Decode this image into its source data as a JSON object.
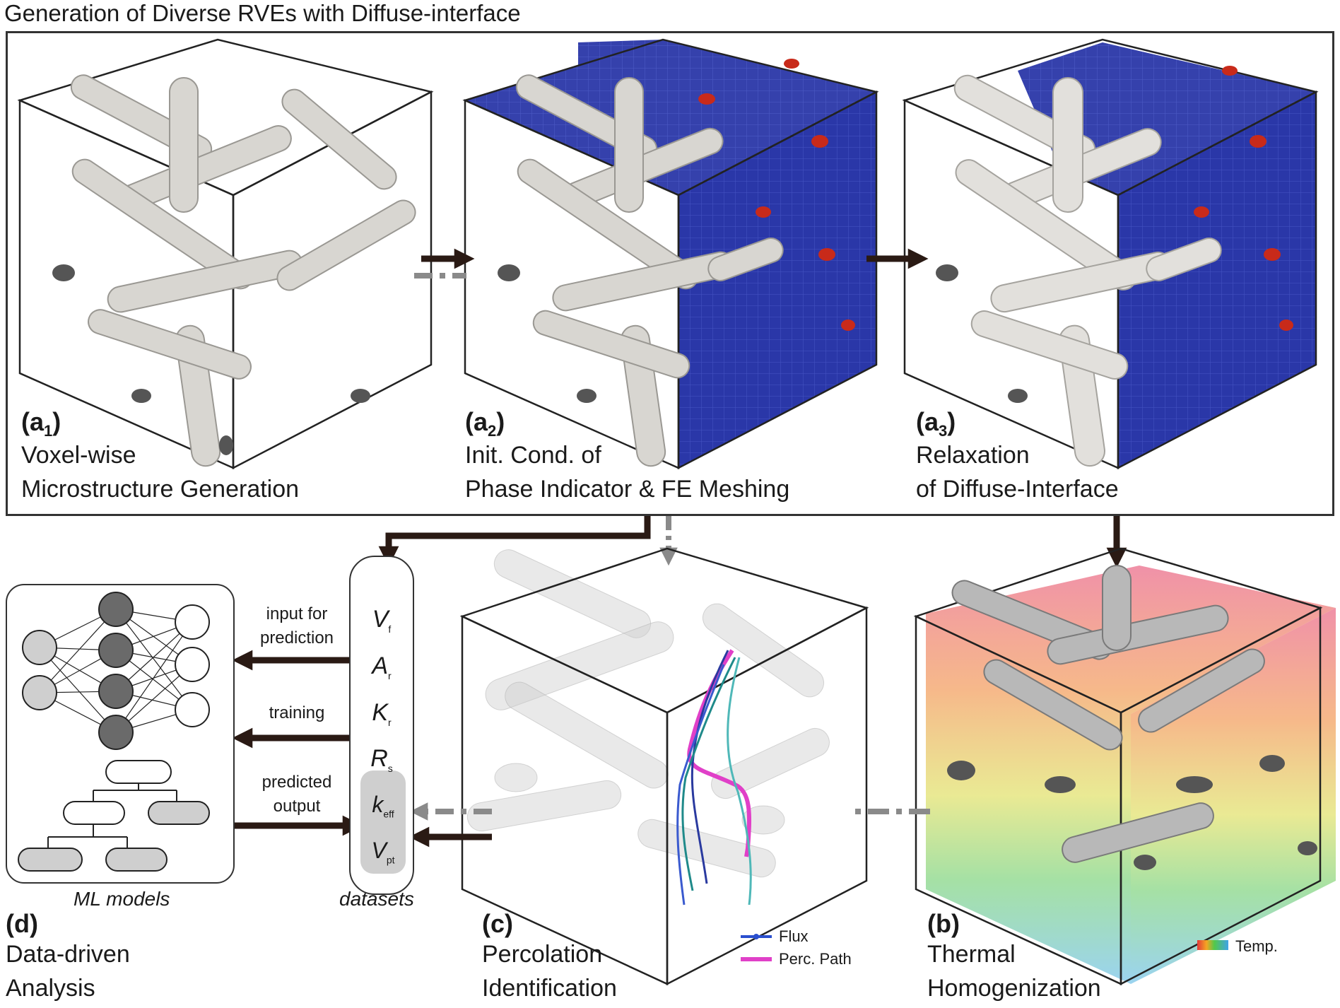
{
  "title": "Generation of Diverse RVEs with Diffuse-interface",
  "panels": {
    "a1": {
      "id": "(a",
      "sub": "1",
      "close": ")",
      "line1": "Voxel-wise",
      "line2": "Microstructure Generation"
    },
    "a2": {
      "id": "(a",
      "sub": "2",
      "close": ")",
      "line1": "Init. Cond. of",
      "line2": "Phase Indicator & FE Meshing"
    },
    "a3": {
      "id": "(a",
      "sub": "3",
      "close": ")",
      "line1": "Relaxation",
      "line2": "of Diffuse-Interface"
    },
    "b": {
      "id": "(b)",
      "line1": "Thermal",
      "line2": "Homogenization"
    },
    "c": {
      "id": "(c)",
      "line1": "Percolation",
      "line2": "Identification"
    },
    "d": {
      "id": "(d)",
      "line1": "Data-driven",
      "line2": "Analysis"
    }
  },
  "arrows": {
    "input_line1": "input for",
    "input_line2": "prediction",
    "training": "training",
    "predicted_line1": "predicted",
    "predicted_line2": "output"
  },
  "ml_label": "ML models",
  "datasets_label": "datasets",
  "variables": [
    {
      "sym": "V",
      "sub": "f"
    },
    {
      "sym": "A",
      "sub": "r"
    },
    {
      "sym": "K",
      "sub": "r"
    },
    {
      "sym": "R",
      "sub": "s"
    }
  ],
  "outputs": [
    {
      "sym": "k",
      "sub": "eff"
    },
    {
      "sym": "V",
      "sub": "pt"
    }
  ],
  "legend_c": {
    "flux": "Flux",
    "path": "Perc. Path"
  },
  "legend_b": {
    "temp": "Temp."
  },
  "colors": {
    "fiber": "#d8d6d1",
    "mesh": "#2a37a8",
    "arrow": "#2a1a14",
    "dashed": "#8a8a8a",
    "path": "#e040c8",
    "flux": "#2a4fcf"
  }
}
